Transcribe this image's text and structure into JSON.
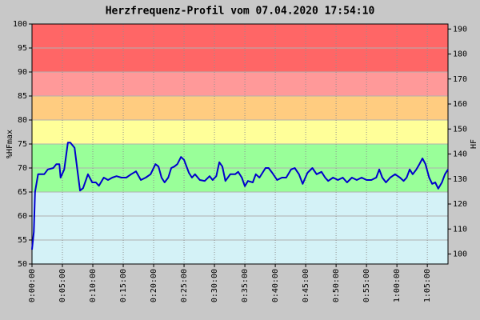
{
  "chart_data": {
    "type": "line",
    "title": "Herzfrequenz-Profil vom 07.04.2020 17:54:10",
    "ylabel": "%HFmax",
    "y2label": "HF",
    "xlim": [
      0,
      68.4
    ],
    "xticks": [
      {
        "value": 0,
        "label": "0:00:00"
      },
      {
        "value": 5,
        "label": "0:05:00"
      },
      {
        "value": 10,
        "label": "0:10:00"
      },
      {
        "value": 15,
        "label": "0:15:00"
      },
      {
        "value": 20,
        "label": "0:20:00"
      },
      {
        "value": 25,
        "label": "0:25:00"
      },
      {
        "value": 30,
        "label": "0:30:00"
      },
      {
        "value": 35,
        "label": "0:35:00"
      },
      {
        "value": 40,
        "label": "0:40:00"
      },
      {
        "value": 45,
        "label": "0:45:00"
      },
      {
        "value": 50,
        "label": "0:50:00"
      },
      {
        "value": 55,
        "label": "0:55:00"
      },
      {
        "value": 60,
        "label": "1:00:00"
      },
      {
        "value": 65,
        "label": "1:05:00"
      }
    ],
    "ylim": [
      50,
      100
    ],
    "yticks": [
      50,
      55,
      60,
      65,
      70,
      75,
      80,
      85,
      90,
      95,
      100
    ],
    "y2lim": [
      96,
      192
    ],
    "y2ticks": [
      100,
      110,
      120,
      130,
      140,
      150,
      160,
      170,
      180,
      190
    ],
    "grid": true,
    "zones": [
      {
        "from": 50,
        "to": 65,
        "color": "#d4f2f7"
      },
      {
        "from": 65,
        "to": 75,
        "color": "#99ff99"
      },
      {
        "from": 75,
        "to": 80,
        "color": "#ffff99"
      },
      {
        "from": 80,
        "to": 85,
        "color": "#ffcc80"
      },
      {
        "from": 85,
        "to": 90,
        "color": "#ff9999"
      },
      {
        "from": 90,
        "to": 100,
        "color": "#ff6666"
      }
    ],
    "series": [
      {
        "color": "#0000cc",
        "x": [
          0,
          0.3,
          0.5,
          1,
          2,
          2.6,
          3.5,
          4,
          4.5,
          4.7,
          5.3,
          5.9,
          6.3,
          7,
          7.5,
          7.9,
          8.4,
          9.2,
          9.9,
          10.5,
          11,
          11.8,
          12.5,
          13.2,
          13.9,
          14.7,
          15.5,
          16.3,
          17.1,
          17.9,
          18.7,
          19.5,
          20.3,
          20.8,
          21.3,
          21.8,
          22.4,
          22.9,
          23.4,
          23.9,
          24.5,
          25,
          25.8,
          26.3,
          26.8,
          27.6,
          28.4,
          29.2,
          29.7,
          30.3,
          30.8,
          31.3,
          31.8,
          32.6,
          33.4,
          33.9,
          34.5,
          35,
          35.5,
          36.3,
          36.8,
          37.4,
          37.9,
          38.4,
          38.9,
          39.5,
          40.3,
          41.1,
          41.8,
          42.6,
          43.2,
          43.9,
          44.5,
          45.3,
          46.1,
          46.8,
          47.6,
          48.2,
          48.7,
          49.5,
          50.3,
          51.1,
          51.8,
          52.6,
          53.4,
          54.2,
          55,
          55.8,
          56.6,
          57.1,
          57.6,
          58.2,
          58.9,
          59.7,
          60.5,
          61.1,
          61.6,
          62.1,
          62.6,
          63.2,
          63.7,
          64.2,
          64.7,
          65.3,
          65.8,
          66.3,
          66.8,
          67.4,
          67.9,
          68.4
        ],
        "values": [
          53,
          56.7,
          65,
          68.7,
          68.7,
          69.7,
          70,
          70.8,
          70.8,
          68,
          69.7,
          75.3,
          75.3,
          74.2,
          69.2,
          65.3,
          65.8,
          68.7,
          67,
          67,
          66.3,
          68,
          67.5,
          68,
          68.3,
          68,
          68,
          68.7,
          69.3,
          67.5,
          68,
          68.7,
          70.8,
          70.3,
          68,
          67,
          68,
          70,
          70.3,
          70.8,
          72.3,
          71.7,
          69,
          68,
          68.7,
          67.5,
          67.3,
          68.3,
          67.5,
          68.3,
          71.2,
          70.3,
          67.3,
          68.7,
          68.7,
          69.2,
          68,
          66.2,
          67.3,
          67,
          68.7,
          68,
          69,
          70,
          70,
          69,
          67.5,
          68,
          68,
          69.7,
          70,
          68.7,
          66.7,
          69,
          70,
          68.7,
          69.2,
          68,
          67.3,
          68,
          67.5,
          68,
          67,
          68,
          67.5,
          68,
          67.5,
          67.5,
          68,
          69.7,
          68,
          67,
          68,
          68.7,
          68,
          67.3,
          68,
          69.7,
          68.7,
          69.7,
          70.8,
          72,
          70.8,
          68,
          66.7,
          67,
          65.7,
          67,
          68.7,
          69.7
        ]
      }
    ]
  }
}
